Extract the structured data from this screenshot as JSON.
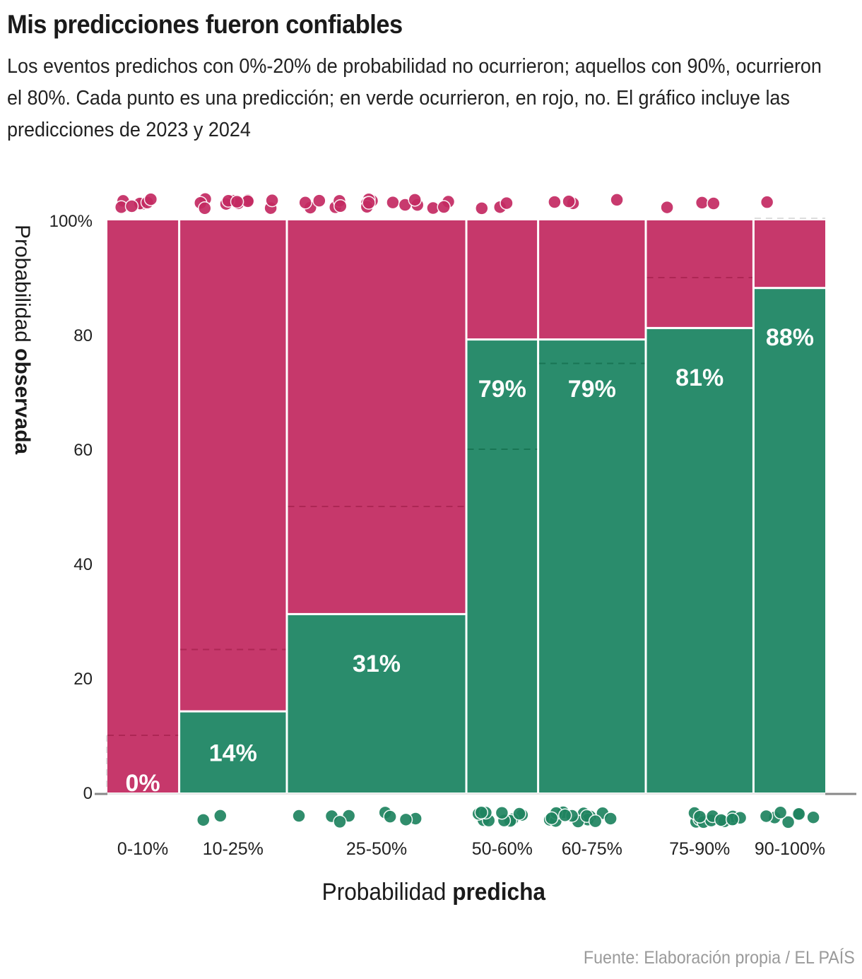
{
  "header": {
    "title": "Mis predicciones fueron confiables",
    "subtitle": "Los eventos predichos con 0%-20% de probabilidad no ocurrieron; aquellos con 90%, ocurrieron el 80%. Cada punto es una predicción; en verde ocurrieron, en rojo, no. El gráfico incluye las predicciones de 2023 y 2024"
  },
  "axes": {
    "ylabel_normal": "Probabilidad ",
    "ylabel_bold": "observada",
    "xlabel_normal": "Probabilidad ",
    "xlabel_bold": "predicha"
  },
  "footer": {
    "source": "Fuente: Elaboración propia / EL PAÍS"
  },
  "colors": {
    "occurred": "#2a8c6c",
    "not_occurred": "#c6386b",
    "dot_green": "#1f8460",
    "dot_red": "#c42a62"
  },
  "chart_data": {
    "type": "bar",
    "subtype": "mosaic (variable-width stacked bars)",
    "title": "Mis predicciones fueron confiables",
    "xlabel": "Probabilidad predicha",
    "ylabel": "Probabilidad observada",
    "ylim": [
      0,
      100
    ],
    "yticks": [
      "0",
      "20",
      "40",
      "60",
      "80",
      "100%"
    ],
    "ytick_values": [
      0,
      20,
      40,
      60,
      80,
      100
    ],
    "categories": [
      "0-10%",
      "10-25%",
      "25-50%",
      "50-60%",
      "60-75%",
      "75-90%",
      "90-100%"
    ],
    "series": [
      {
        "name": "Ocurrieron (verde)",
        "values": [
          0,
          14,
          31,
          79,
          79,
          81,
          88
        ]
      },
      {
        "name": "No ocurrieron (rojo)",
        "values": [
          100,
          86,
          69,
          21,
          21,
          19,
          12
        ]
      }
    ],
    "value_labels": [
      "0%",
      "14%",
      "31%",
      "79%",
      "79%",
      "81%",
      "88%"
    ],
    "reference_upper_bound": [
      10,
      25,
      50,
      60,
      75,
      90,
      100
    ],
    "approx_predictions_per_bin": [
      7,
      14,
      26,
      14,
      19,
      16,
      8
    ],
    "approx_occurred_per_bin": [
      0,
      2,
      8,
      11,
      15,
      13,
      7
    ],
    "grid": false,
    "legend": "none (described in subtitle)"
  }
}
